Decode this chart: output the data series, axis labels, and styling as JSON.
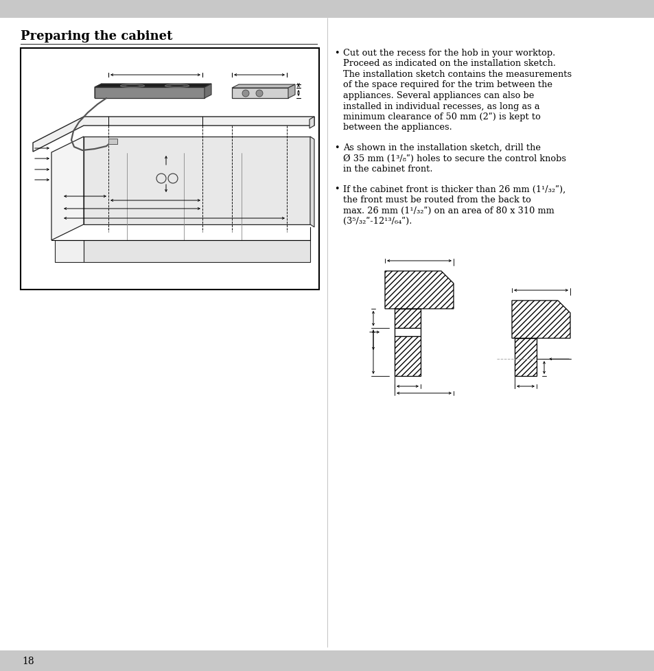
{
  "title": "Preparing the cabinet",
  "page_number": "18",
  "bg_color": "#ffffff",
  "top_bar_color": "#c8c8c8",
  "bottom_bar_color": "#c8c8c8",
  "text_color": "#000000",
  "bullet1_lines": [
    "Cut out the recess for the hob in your worktop.",
    "Proceed as indicated on the installation sketch.",
    "The installation sketch contains the measurements",
    "of the space required for the trim between the",
    "appliances. Several appliances can also be",
    "installed in individual recesses, as long as a",
    "minimum clearance of 50 mm (2ʺ) is kept to",
    "between the appliances."
  ],
  "bullet2_lines": [
    "As shown in the installation sketch, drill the",
    "Ø 35 mm (1³/₈ʺ) holes to secure the control knobs",
    "in the cabinet front."
  ],
  "bullet3_lines": [
    "If the cabinet front is thicker than 26 mm (1¹/₃₂ʺ),",
    "the front must be routed from the back to",
    "max. 26 mm (1¹/₃₂ʺ) on an area of 80 x 310 mm",
    "(3⁵/₃₂ʺ-12¹³/₆₄ʺ)."
  ]
}
